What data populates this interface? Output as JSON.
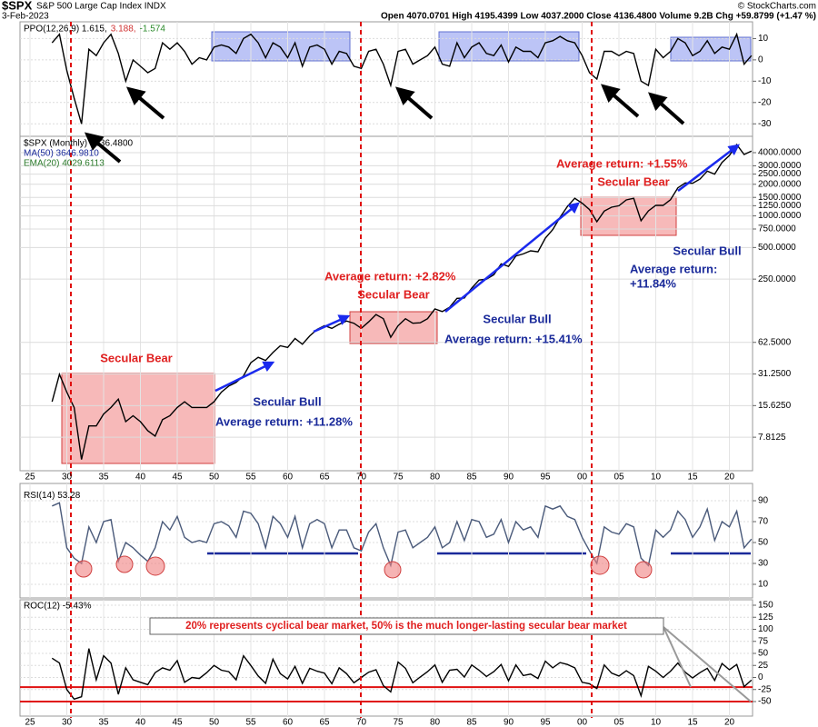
{
  "header": {
    "symbol": "$SPX",
    "name": "S&P 500 Large Cap Index INDX",
    "source": "© StockCharts.com",
    "date": "3-Feb-2023",
    "quote": "Open 4070.0701  High 4195.4399  Low 4037.2000  Close 4136.4800  Volume 9.2B  Chg +59.8799 (+1.47 %)"
  },
  "annotations": {
    "bear1": "Secular Bear",
    "bull1": "Secular Bull",
    "bull1_return": "Average return:  +11.28%",
    "bear2_return": "Average return:  +2.82%",
    "bear2": "Secular Bear",
    "bull2": "Secular Bull",
    "bull2_return": "Average return:  +15.41%",
    "bear3_return": "Average return:  +1.55%",
    "bear3": "Secular Bear",
    "bull3": "Secular Bull",
    "bull3_return_label": "Average return:",
    "bull3_return_value": "+11.84%",
    "roc_note": "20% represents cyclical bear market, 50% is the much longer-lasting secular bear market"
  },
  "chart_data": {
    "type": "line",
    "x": [
      1928,
      1929,
      1930,
      1931,
      1932,
      1933,
      1934,
      1935,
      1936,
      1937,
      1938,
      1939,
      1940,
      1941,
      1942,
      1943,
      1944,
      1945,
      1946,
      1947,
      1948,
      1949,
      1950,
      1951,
      1952,
      1953,
      1954,
      1955,
      1956,
      1957,
      1958,
      1959,
      1960,
      1961,
      1962,
      1963,
      1964,
      1965,
      1966,
      1967,
      1968,
      1969,
      1970,
      1971,
      1972,
      1973,
      1974,
      1975,
      1976,
      1977,
      1978,
      1979,
      1980,
      1981,
      1982,
      1983,
      1984,
      1985,
      1986,
      1987,
      1988,
      1989,
      1990,
      1991,
      1992,
      1993,
      1994,
      1995,
      1996,
      1997,
      1998,
      1999,
      2000,
      2001,
      2002,
      2003,
      2004,
      2005,
      2006,
      2007,
      2008,
      2009,
      2010,
      2011,
      2012,
      2013,
      2014,
      2015,
      2016,
      2017,
      2018,
      2019,
      2020,
      2021,
      2022,
      2023
    ],
    "xlim": [
      1925,
      2023.1
    ],
    "xticks": [
      {
        "value": 1925,
        "label": "25"
      },
      {
        "value": 1930,
        "label": "30"
      },
      {
        "value": 1935,
        "label": "35"
      },
      {
        "value": 1940,
        "label": "40"
      },
      {
        "value": 1945,
        "label": "45"
      },
      {
        "value": 1950,
        "label": "50"
      },
      {
        "value": 1955,
        "label": "55"
      },
      {
        "value": 1960,
        "label": "60"
      },
      {
        "value": 1965,
        "label": "65"
      },
      {
        "value": 1970,
        "label": "70"
      },
      {
        "value": 1975,
        "label": "75"
      },
      {
        "value": 1980,
        "label": "80"
      },
      {
        "value": 1985,
        "label": "85"
      },
      {
        "value": 1990,
        "label": "90"
      },
      {
        "value": 1995,
        "label": "95"
      },
      {
        "value": 2000,
        "label": "00"
      },
      {
        "value": 2005,
        "label": "05"
      },
      {
        "value": 2010,
        "label": "10"
      },
      {
        "value": 2015,
        "label": "15"
      },
      {
        "value": 2020,
        "label": "20"
      }
    ],
    "grid": true,
    "panels": [
      {
        "legend": [
          {
            "text": "PPO(12,26,9) 1.615,",
            "color": "#000000"
          },
          {
            "text": "3.188,",
            "color": "#d03030"
          },
          {
            "text": "-1.574",
            "color": "#2a8a2a"
          }
        ],
        "series": [
          {
            "color": "#000000",
            "values": [
              8,
              12,
              -5,
              -18,
              -30,
              5,
              2,
              8,
              12,
              3,
              -10,
              0,
              -3,
              -6,
              -4,
              8,
              5,
              8,
              4,
              -2,
              1,
              0,
              6,
              7,
              6,
              3,
              10,
              12,
              8,
              1,
              8,
              6,
              1,
              8,
              -3,
              6,
              7,
              5,
              -2,
              4,
              3,
              -3,
              -4,
              4,
              5,
              -2,
              -12,
              4,
              5,
              -2,
              0,
              2,
              6,
              -2,
              -3,
              8,
              1,
              6,
              8,
              3,
              2,
              7,
              -1,
              6,
              4,
              4,
              1,
              8,
              9,
              11,
              9,
              8,
              2,
              -6,
              -9,
              4,
              4,
              2,
              4,
              3,
              -10,
              -12,
              5,
              1,
              4,
              10,
              8,
              2,
              4,
              9,
              3,
              6,
              5,
              12,
              -2,
              2
            ]
          }
        ],
        "ylim": [
          -35,
          17
        ],
        "yticks": [
          -30,
          -20,
          -10,
          0,
          10
        ]
      },
      {
        "legend": [
          {
            "text": "$SPX (Monthly) 4136.4800",
            "color": "#000000"
          },
          {
            "text": "MA(50) 3646.9810",
            "color": "#1a2a9a"
          },
          {
            "text": "EMA(20) 4029.6113",
            "color": "#2a7a2a"
          }
        ],
        "log_scale": true,
        "series": [
          {
            "color": "#000000",
            "values": [
              17,
              31,
              21,
              15,
              4.8,
              10,
              10,
              13,
              15,
              18,
              11,
              12.5,
              11,
              9,
              8,
              11.5,
              12.5,
              15,
              17,
              15,
              15,
              15,
              17,
              21,
              24,
              26,
              30,
              40,
              45,
              42,
              50,
              58,
              56,
              68,
              60,
              72,
              83,
              90,
              85,
              93,
              100,
              95,
              85,
              98,
              115,
              105,
              70,
              90,
              105,
              95,
              96,
              105,
              130,
              123,
              135,
              164,
              165,
              205,
              245,
              250,
              275,
              350,
              330,
              415,
              435,
              465,
              455,
              615,
              740,
              970,
              1230,
              1470,
              1320,
              1150,
              880,
              1110,
              1210,
              1250,
              1420,
              1470,
              900,
              1115,
              1260,
              1260,
              1425,
              1850,
              2060,
              2045,
              2240,
              2670,
              2500,
              3230,
              3750,
              4770,
              3840,
              4136.48
            ]
          }
        ],
        "ylim": [
          3.9,
          5500
        ],
        "yticks": [
          7.8125,
          {
            "value": 15.625,
            "label": "15.6250"
          },
          {
            "value": 31.25,
            "label": "31.2500"
          },
          {
            "value": 62.5,
            "label": "62.5000"
          },
          {
            "value": 250,
            "label": "250.0000"
          },
          {
            "value": 500,
            "label": "500.0000"
          },
          {
            "value": 750,
            "label": "750.0000"
          },
          {
            "value": 1000,
            "label": "1000.0000"
          },
          {
            "value": 1250,
            "label": "1250.0000"
          },
          {
            "value": 1500,
            "label": "1500.0000"
          },
          {
            "value": 2000,
            "label": "2000.0000"
          },
          {
            "value": 2500,
            "label": "2500.0000"
          },
          {
            "value": 3000,
            "label": "3000.0000"
          },
          {
            "value": 4000,
            "label": "4000.0000"
          }
        ]
      },
      {
        "legend": [
          {
            "text": "RSI(14) 53.28",
            "color": "#000000"
          }
        ],
        "series": [
          {
            "color": "#4a5a7a",
            "values": [
              85,
              88,
              45,
              35,
              30,
              65,
              50,
              70,
              72,
              32,
              50,
              45,
              38,
              32,
              45,
              70,
              62,
              75,
              55,
              50,
              52,
              50,
              68,
              70,
              66,
              55,
              80,
              78,
              68,
              45,
              75,
              68,
              55,
              75,
              45,
              68,
              72,
              68,
              45,
              62,
              62,
              45,
              42,
              60,
              68,
              45,
              28,
              60,
              62,
              45,
              50,
              55,
              65,
              45,
              50,
              70,
              52,
              72,
              70,
              55,
              58,
              72,
              50,
              70,
              62,
              65,
              55,
              85,
              82,
              85,
              75,
              72,
              55,
              42,
              30,
              65,
              60,
              58,
              68,
              65,
              35,
              28,
              62,
              55,
              62,
              80,
              72,
              55,
              65,
              82,
              52,
              70,
              65,
              80,
              45,
              53.28
            ]
          }
        ],
        "ylim": [
          0,
          100
        ],
        "yticks": [
          10,
          30,
          50,
          70,
          90
        ]
      },
      {
        "legend": [
          {
            "text": "ROC(12) -5.43%",
            "color": "#000000"
          }
        ],
        "series": [
          {
            "color": "#000000",
            "values": [
              40,
              30,
              -25,
              -45,
              -40,
              60,
              -5,
              45,
              30,
              -35,
              20,
              -5,
              -10,
              -15,
              10,
              20,
              15,
              35,
              -10,
              0,
              -2,
              10,
              25,
              15,
              12,
              -5,
              45,
              25,
              3,
              -12,
              38,
              8,
              -3,
              23,
              -12,
              19,
              13,
              9,
              -13,
              20,
              8,
              -11,
              0,
              11,
              16,
              -17,
              -30,
              32,
              19,
              -11,
              1,
              12,
              26,
              -10,
              15,
              17,
              1,
              26,
              15,
              2,
              12,
              27,
              -7,
              26,
              4,
              7,
              -2,
              34,
              20,
              31,
              27,
              20,
              -10,
              -13,
              -23,
              26,
              9,
              3,
              14,
              4,
              -38,
              23,
              13,
              0,
              13,
              30,
              11,
              -1,
              10,
              19,
              -6,
              29,
              16,
              27,
              -19,
              -5.43
            ]
          }
        ],
        "ylim": [
          -60,
          160
        ],
        "yticks": [
          -50,
          -25,
          0,
          25,
          50,
          75,
          100,
          125,
          150
        ],
        "reference_lines": [
          -20,
          -50
        ]
      }
    ]
  }
}
